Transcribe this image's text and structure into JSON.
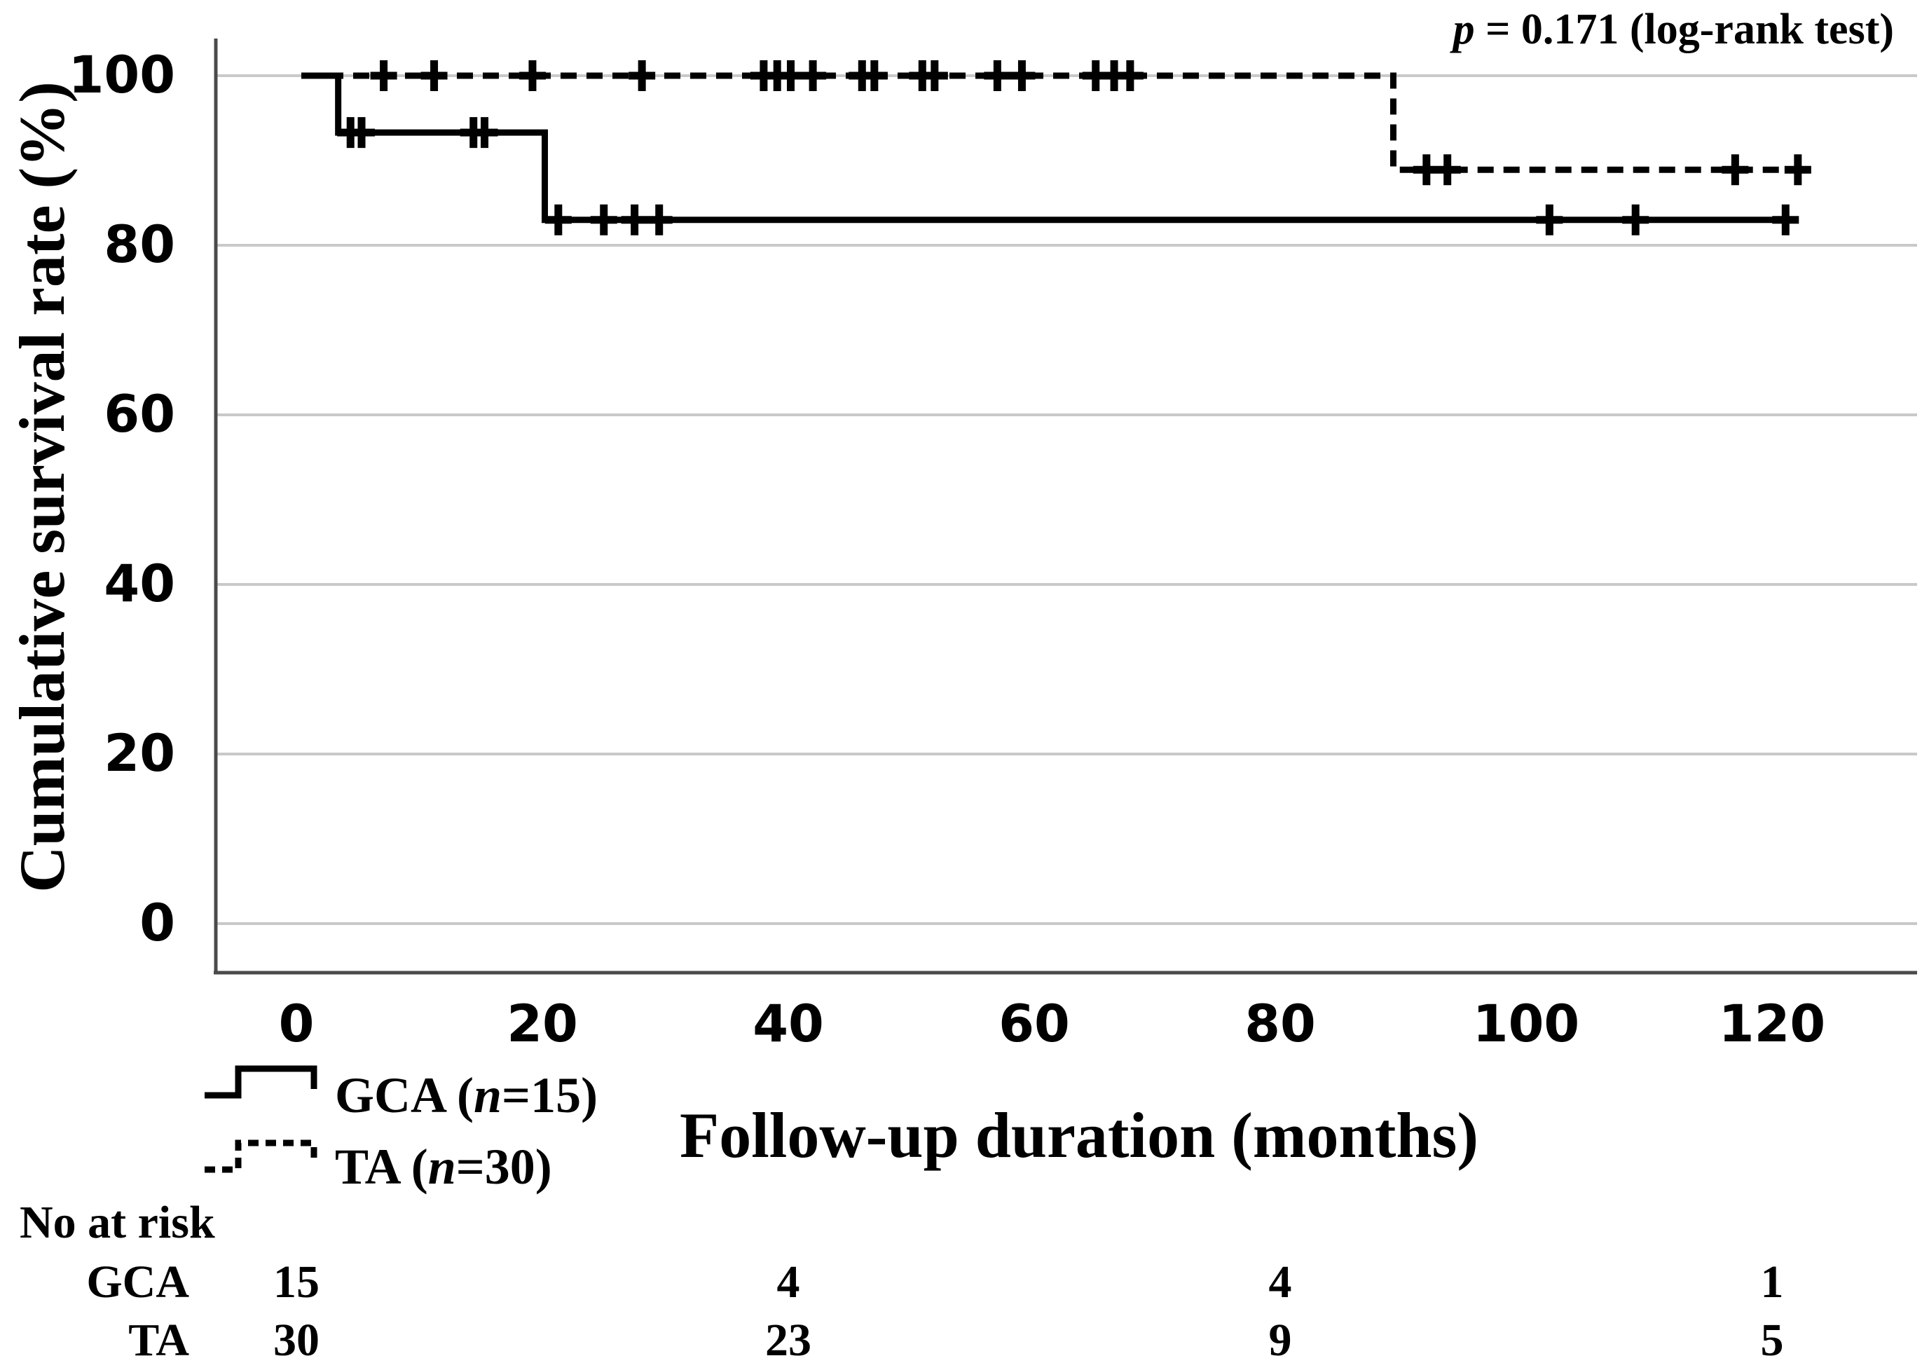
{
  "figure": {
    "annotation": {
      "p": "p",
      "rest": " = 0.171 (log-rank test)"
    },
    "y_axis": {
      "title": "Cumulative survival rate (%)"
    },
    "x_axis": {
      "title": "Follow-up duration (months)"
    },
    "legend": {
      "items": [
        {
          "id": "gca",
          "pre": "GCA (",
          "n": "n",
          "post": "=15)"
        },
        {
          "id": "ta",
          "pre": "TA (",
          "n": "n",
          "post": "=30)"
        }
      ]
    },
    "risk_table": {
      "header": "No at risk",
      "rows": [
        {
          "label": "GCA",
          "values": [
            "15",
            "4",
            "4",
            "1"
          ]
        },
        {
          "label": "TA",
          "values": [
            "30",
            "23",
            "9",
            "5"
          ]
        }
      ]
    }
  },
  "chart_data": {
    "type": "line",
    "subtype": "kaplan_meier_step",
    "title": "",
    "xlabel": "Follow-up duration (months)",
    "ylabel": "Cumulative survival rate (%)",
    "annotation": "p = 0.171 (log-rank test)",
    "xticks": [
      0,
      20,
      40,
      60,
      80,
      100,
      120
    ],
    "yticks": [
      100,
      80,
      60,
      40,
      20,
      0
    ],
    "xlim": [
      -6.5,
      131.8
    ],
    "ylim": [
      -5.8,
      104.3
    ],
    "grid": "horizontal",
    "legend_position": "below-left",
    "series": [
      {
        "id": "gca",
        "name": "GCA (n=15)",
        "n": 15,
        "line": "solid",
        "color": "#000000",
        "steps": [
          [
            0.4,
            100
          ],
          [
            3.4,
            93.3
          ],
          [
            20.2,
            83.0
          ],
          [
            121.8,
            83.0
          ]
        ],
        "censors": [
          [
            4.4,
            93.3
          ],
          [
            5.3,
            93.3
          ],
          [
            14.4,
            93.3
          ],
          [
            15.3,
            93.3
          ],
          [
            21.3,
            83.0
          ],
          [
            25.0,
            83.0
          ],
          [
            27.5,
            83.0
          ],
          [
            29.5,
            83.0
          ],
          [
            101.9,
            83.0
          ],
          [
            108.9,
            83.0
          ],
          [
            121.1,
            83.0
          ]
        ]
      },
      {
        "id": "ta",
        "name": "TA (n=30)",
        "n": 30,
        "line": "dashed",
        "color": "#000000",
        "steps": [
          [
            0.4,
            100
          ],
          [
            89.2,
            88.9
          ],
          [
            123.1,
            88.9
          ]
        ],
        "censors": [
          [
            7.1,
            100
          ],
          [
            11.2,
            100
          ],
          [
            19.2,
            100
          ],
          [
            28.1,
            100
          ],
          [
            38.0,
            100
          ],
          [
            39.1,
            100
          ],
          [
            40.2,
            100
          ],
          [
            42.0,
            100
          ],
          [
            46.0,
            100
          ],
          [
            47.0,
            100
          ],
          [
            50.9,
            100
          ],
          [
            51.9,
            100
          ],
          [
            57.0,
            100
          ],
          [
            59.0,
            100
          ],
          [
            65.0,
            100
          ],
          [
            66.5,
            100
          ],
          [
            67.8,
            100
          ],
          [
            91.9,
            88.9
          ],
          [
            93.6,
            88.9
          ],
          [
            117.0,
            88.9
          ],
          [
            122.1,
            88.9
          ]
        ]
      }
    ],
    "number_at_risk": {
      "times": [
        0,
        40,
        80,
        120
      ],
      "rows": [
        {
          "label": "GCA",
          "counts": [
            15,
            4,
            4,
            1
          ]
        },
        {
          "label": "TA",
          "counts": [
            30,
            23,
            9,
            5
          ]
        }
      ]
    }
  }
}
